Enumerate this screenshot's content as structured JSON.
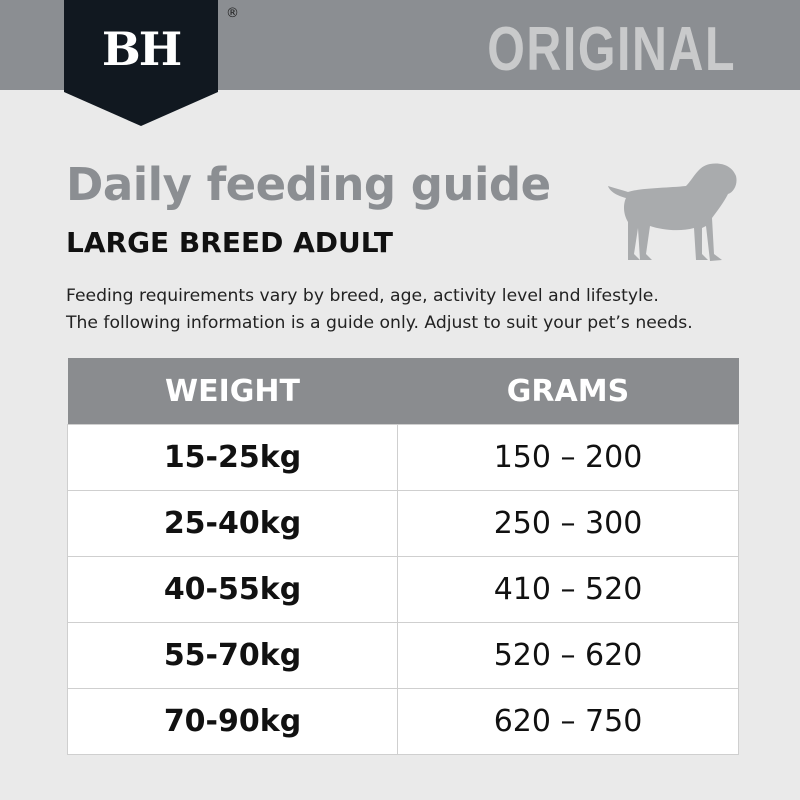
{
  "brand": {
    "logo_text": "BH",
    "registered": "®",
    "variant": "ORIGINAL"
  },
  "colors": {
    "band": "#8b8e92",
    "badge": "#111820",
    "title": "#8b8e92",
    "table_header": "#8a8c8f"
  },
  "title": "Daily feeding guide",
  "subtitle": "LARGE BREED ADULT",
  "description": [
    "Feeding requirements vary by breed, age, activity level and lifestyle.",
    "The following information is a guide only. Adjust to suit your pet’s needs."
  ],
  "icon": "dog-silhouette-icon",
  "table": {
    "headers": [
      "WEIGHT",
      "GRAMS"
    ],
    "rows": [
      {
        "weight": "15-25kg",
        "grams": "150 – 200"
      },
      {
        "weight": "25-40kg",
        "grams": "250 – 300"
      },
      {
        "weight": "40-55kg",
        "grams": "410 – 520"
      },
      {
        "weight": "55-70kg",
        "grams": "520 – 620"
      },
      {
        "weight": "70-90kg",
        "grams": "620 – 750"
      }
    ]
  }
}
